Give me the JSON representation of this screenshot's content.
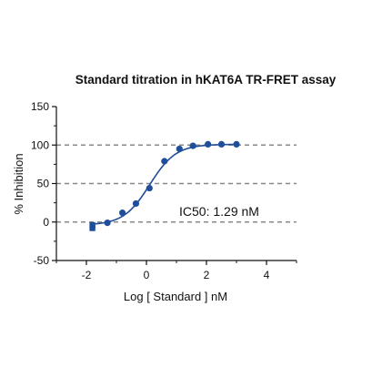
{
  "chart_data": {
    "type": "scatter",
    "title": "Standard titration in hKAT6A TR-FRET assay",
    "xlabel": "Log [ Standard ] nM",
    "ylabel": "% Inhibition",
    "xlim": [
      -3,
      5
    ],
    "ylim": [
      -50,
      150
    ],
    "xticks": [
      -2,
      0,
      2,
      4
    ],
    "xtick_labels": [
      "-2",
      "0",
      "2",
      "4"
    ],
    "yticks": [
      -50,
      0,
      50,
      100,
      150
    ],
    "ytick_labels": [
      "-50",
      "0",
      "50",
      "100",
      "150"
    ],
    "reference_lines": [
      0,
      50,
      100
    ],
    "annotation": "IC50:  1.29 nM",
    "marker_color": "#1f4e9a",
    "curve_color": "#1f4e9a",
    "refline_color": "#888888",
    "series": [
      {
        "points": [
          {
            "x": -1.8,
            "y": -8,
            "marker": "square"
          },
          {
            "x": -1.8,
            "y": -4,
            "marker": "square"
          },
          {
            "x": -1.3,
            "y": -1,
            "marker": "circle"
          },
          {
            "x": -0.8,
            "y": 12,
            "marker": "circle"
          },
          {
            "x": -0.35,
            "y": 24,
            "marker": "circle"
          },
          {
            "x": 0.1,
            "y": 44,
            "marker": "circle"
          },
          {
            "x": 0.6,
            "y": 79,
            "marker": "circle"
          },
          {
            "x": 1.1,
            "y": 95,
            "marker": "circle"
          },
          {
            "x": 1.55,
            "y": 99,
            "marker": "circle"
          },
          {
            "x": 2.05,
            "y": 101,
            "marker": "circle"
          },
          {
            "x": 2.5,
            "y": 101,
            "marker": "circle"
          },
          {
            "x": 3.0,
            "y": 101,
            "marker": "circle"
          }
        ],
        "fit": {
          "model": "four-parameter logistic",
          "bottom": -4,
          "top": 101,
          "logIC50": 0.11,
          "hill": 1.0
        }
      }
    ]
  }
}
